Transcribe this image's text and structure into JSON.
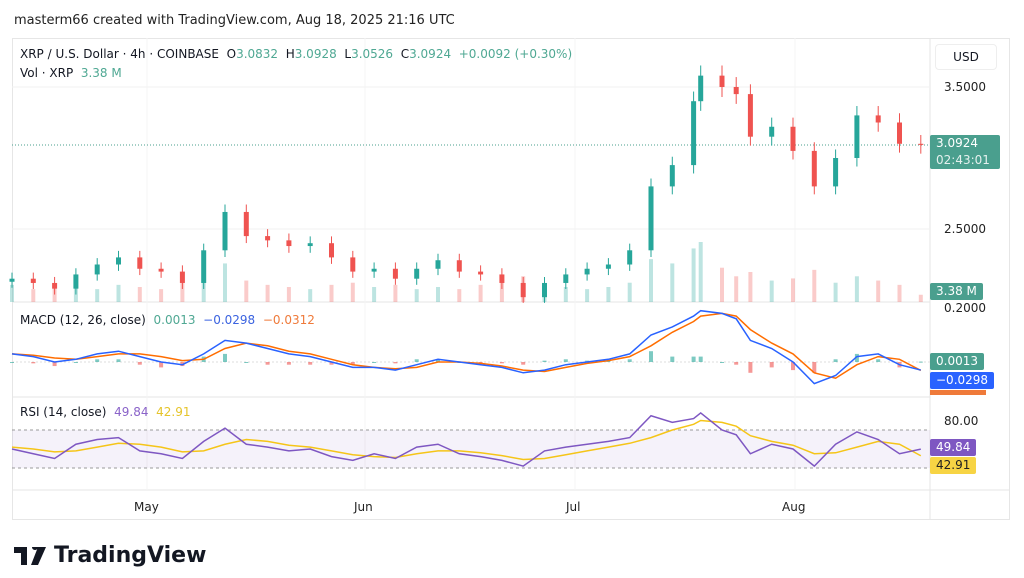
{
  "credit": "masterm66 created with TradingView.com, Aug 18, 2025 21:16 UTC",
  "legend": {
    "symbol": "XRP / U.S. Dollar · 4h · COINBASE",
    "o_label": "O",
    "o": "3.0832",
    "h_label": "H",
    "h": "3.0928",
    "l_label": "L",
    "l": "3.0526",
    "c_label": "C",
    "c": "3.0924",
    "change": "+0.0092 (+0.30%)",
    "vol_label": "Vol · XRP",
    "vol": "3.38 M"
  },
  "macd_legend": {
    "label": "MACD (12, 26, close)",
    "hist": "0.0013",
    "macd": "−0.0298",
    "signal": "−0.0312"
  },
  "rsi_legend": {
    "label": "RSI (14, close)",
    "rsi": "49.84",
    "ma": "42.91"
  },
  "axis": {
    "currency": "USD",
    "price_ticks": [
      "3.5000",
      "2.5000"
    ],
    "price_tag": "3.0924",
    "countdown": "02:43:01",
    "vol_tag": "3.38 M",
    "macd_tick": "0.2000",
    "macd_tags": [
      "0.0013",
      "−0.0298"
    ],
    "rsi_tick": "80.00",
    "rsi_tags": [
      "49.84",
      "42.91"
    ],
    "months": [
      "May",
      "Jun",
      "Jul",
      "Aug"
    ]
  },
  "colors": {
    "up": "#26a69a",
    "down": "#ef5350",
    "macd": "#2962ff",
    "signal": "#ff6d00",
    "rsi": "#7e57c2",
    "rsi_ma": "#f5c518"
  },
  "brand": "TradingView",
  "chart_data": {
    "type": "candlestick",
    "title": "XRP / U.S. Dollar · 4h · COINBASE",
    "ylim": [
      1.99,
      3.83
    ],
    "x": [
      "2025-04-12",
      "2025-04-15",
      "2025-04-18",
      "2025-04-21",
      "2025-04-24",
      "2025-04-27",
      "2025-04-30",
      "2025-05-03",
      "2025-05-06",
      "2025-05-09",
      "2025-05-12",
      "2025-05-15",
      "2025-05-18",
      "2025-05-21",
      "2025-05-24",
      "2025-05-27",
      "2025-05-30",
      "2025-06-02",
      "2025-06-05",
      "2025-06-08",
      "2025-06-11",
      "2025-06-14",
      "2025-06-17",
      "2025-06-20",
      "2025-06-23",
      "2025-06-26",
      "2025-06-29",
      "2025-07-02",
      "2025-07-05",
      "2025-07-08",
      "2025-07-11",
      "2025-07-14",
      "2025-07-17",
      "2025-07-18",
      "2025-07-21",
      "2025-07-23",
      "2025-07-25",
      "2025-07-28",
      "2025-07-31",
      "2025-08-03",
      "2025-08-06",
      "2025-08-09",
      "2025-08-12",
      "2025-08-15",
      "2025-08-18"
    ],
    "close": [
      2.15,
      2.12,
      2.08,
      2.18,
      2.25,
      2.3,
      2.22,
      2.2,
      2.12,
      2.35,
      2.62,
      2.45,
      2.42,
      2.38,
      2.4,
      2.3,
      2.2,
      2.22,
      2.15,
      2.22,
      2.28,
      2.2,
      2.18,
      2.12,
      2.02,
      2.12,
      2.18,
      2.22,
      2.25,
      2.35,
      2.8,
      2.95,
      3.4,
      3.58,
      3.5,
      3.45,
      3.15,
      3.22,
      3.05,
      2.8,
      3.0,
      3.3,
      3.25,
      3.1,
      3.0924
    ],
    "volume_m": [
      8,
      6,
      7,
      9,
      6,
      8,
      7,
      6,
      9,
      12,
      18,
      10,
      8,
      7,
      6,
      8,
      9,
      7,
      8,
      6,
      7,
      6,
      8,
      9,
      12,
      8,
      7,
      6,
      7,
      9,
      20,
      18,
      25,
      28,
      16,
      12,
      14,
      10,
      11,
      15,
      9,
      12,
      10,
      8,
      3.38
    ],
    "macd": [
      0.03,
      0.02,
      0.0,
      0.01,
      0.03,
      0.04,
      0.02,
      0.0,
      -0.01,
      0.03,
      0.08,
      0.07,
      0.05,
      0.03,
      0.02,
      0.0,
      -0.02,
      -0.02,
      -0.03,
      -0.01,
      0.01,
      0.0,
      -0.01,
      -0.02,
      -0.04,
      -0.03,
      -0.01,
      0.0,
      0.01,
      0.03,
      0.1,
      0.13,
      0.17,
      0.19,
      0.18,
      0.16,
      0.08,
      0.05,
      0.0,
      -0.08,
      -0.05,
      0.02,
      0.03,
      -0.01,
      -0.0298
    ],
    "signal": [
      0.03,
      0.025,
      0.015,
      0.01,
      0.02,
      0.03,
      0.03,
      0.02,
      0.005,
      0.01,
      0.05,
      0.07,
      0.06,
      0.04,
      0.03,
      0.01,
      -0.01,
      -0.02,
      -0.025,
      -0.02,
      0.0,
      0.0,
      -0.005,
      -0.015,
      -0.03,
      -0.035,
      -0.02,
      -0.005,
      0.005,
      0.02,
      0.06,
      0.11,
      0.15,
      0.17,
      0.18,
      0.17,
      0.12,
      0.07,
      0.03,
      -0.04,
      -0.06,
      -0.01,
      0.02,
      0.01,
      -0.0312
    ],
    "rsi": [
      50,
      45,
      40,
      55,
      60,
      62,
      48,
      45,
      40,
      58,
      72,
      55,
      52,
      48,
      50,
      42,
      38,
      45,
      40,
      52,
      55,
      45,
      42,
      38,
      32,
      48,
      52,
      55,
      58,
      62,
      85,
      78,
      82,
      88,
      70,
      65,
      45,
      55,
      50,
      32,
      55,
      68,
      60,
      45,
      49.84
    ],
    "rsi_ma": [
      52,
      50,
      47,
      48,
      52,
      56,
      55,
      52,
      47,
      48,
      55,
      60,
      58,
      54,
      52,
      48,
      44,
      42,
      41,
      45,
      48,
      48,
      46,
      43,
      39,
      40,
      44,
      48,
      52,
      56,
      62,
      70,
      76,
      80,
      78,
      74,
      64,
      58,
      54,
      45,
      46,
      52,
      58,
      55,
      42.91
    ],
    "rsi_bands": [
      70,
      30
    ]
  }
}
